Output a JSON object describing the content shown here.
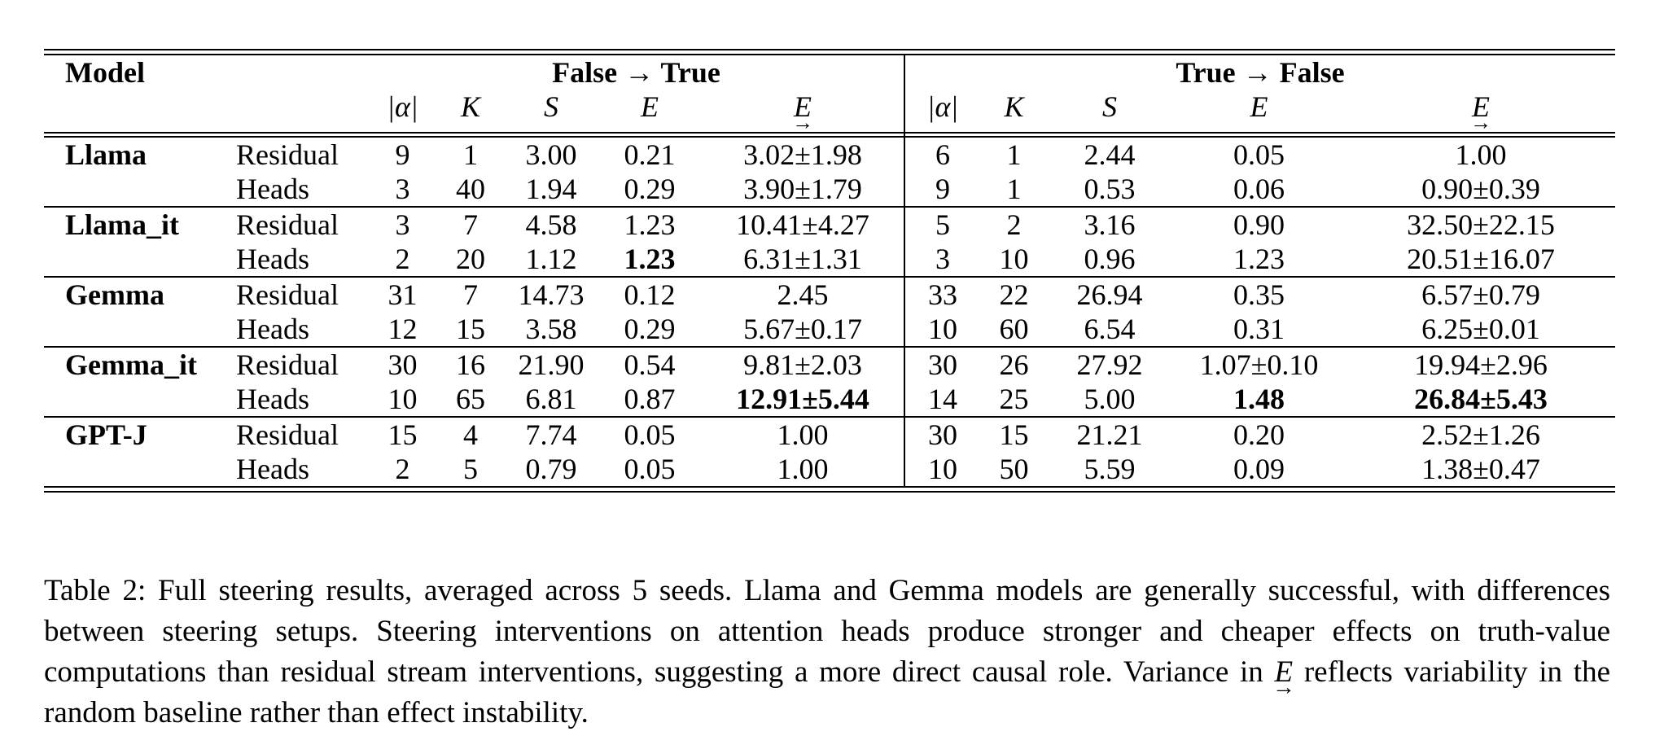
{
  "table": {
    "header": {
      "model_label": "Model",
      "group_ft": "False → True",
      "group_tf": "True → False",
      "cols": [
        "|α|",
        "K",
        "S",
        "E",
        "E"
      ],
      "arrow": "→"
    },
    "models": [
      {
        "name": "Llama",
        "rows": [
          {
            "type": "Residual",
            "ft": [
              "9",
              "1",
              "3.00",
              "0.21",
              "3.02±1.98"
            ],
            "tf": [
              "6",
              "1",
              "2.44",
              "0.05",
              "1.00"
            ]
          },
          {
            "type": "Heads",
            "ft": [
              "3",
              "40",
              "1.94",
              "0.29",
              "3.90±1.79"
            ],
            "tf": [
              "9",
              "1",
              "0.53",
              "0.06",
              "0.90±0.39"
            ]
          }
        ]
      },
      {
        "name": "Llama_it",
        "rows": [
          {
            "type": "Residual",
            "ft": [
              "3",
              "7",
              "4.58",
              "1.23",
              "10.41±4.27"
            ],
            "tf": [
              "5",
              "2",
              "3.16",
              "0.90",
              "32.50±22.15"
            ]
          },
          {
            "type": "Heads",
            "ft": [
              "2",
              "20",
              "1.12",
              "1.23",
              "6.31±1.31"
            ],
            "tf": [
              "3",
              "10",
              "0.96",
              "1.23",
              "20.51±16.07"
            ]
          }
        ]
      },
      {
        "name": "Gemma",
        "rows": [
          {
            "type": "Residual",
            "ft": [
              "31",
              "7",
              "14.73",
              "0.12",
              "2.45"
            ],
            "tf": [
              "33",
              "22",
              "26.94",
              "0.35",
              "6.57±0.79"
            ]
          },
          {
            "type": "Heads",
            "ft": [
              "12",
              "15",
              "3.58",
              "0.29",
              "5.67±0.17"
            ],
            "tf": [
              "10",
              "60",
              "6.54",
              "0.31",
              "6.25±0.01"
            ]
          }
        ]
      },
      {
        "name": "Gemma_it",
        "rows": [
          {
            "type": "Residual",
            "ft": [
              "30",
              "16",
              "21.90",
              "0.54",
              "9.81±2.03"
            ],
            "tf": [
              "30",
              "26",
              "27.92",
              "1.07±0.10",
              "19.94±2.96"
            ]
          },
          {
            "type": "Heads",
            "ft": [
              "10",
              "65",
              "6.81",
              "0.87",
              "12.91±5.44"
            ],
            "tf": [
              "14",
              "25",
              "5.00",
              "1.48",
              "26.84±5.43"
            ]
          }
        ]
      },
      {
        "name": "GPT-J",
        "rows": [
          {
            "type": "Residual",
            "ft": [
              "15",
              "4",
              "7.74",
              "0.05",
              "1.00"
            ],
            "tf": [
              "30",
              "15",
              "21.21",
              "0.20",
              "2.52±1.26"
            ]
          },
          {
            "type": "Heads",
            "ft": [
              "2",
              "5",
              "0.79",
              "0.05",
              "1.00"
            ],
            "tf": [
              "10",
              "50",
              "5.59",
              "0.09",
              "1.38±0.47"
            ]
          }
        ]
      }
    ]
  },
  "caption": {
    "before": "Table 2: Full steering results, averaged across 5 seeds. Llama and Gemma models are generally successful, with differences between steering setups. Steering interventions on attention heads produce stronger and cheaper effects on truth-value computations than residual stream interventions, suggesting a more direct causal role. Variance in ",
    "symbol": "E",
    "arrow": "→",
    "after": " reflects variability in the random baseline rather than effect instability."
  }
}
